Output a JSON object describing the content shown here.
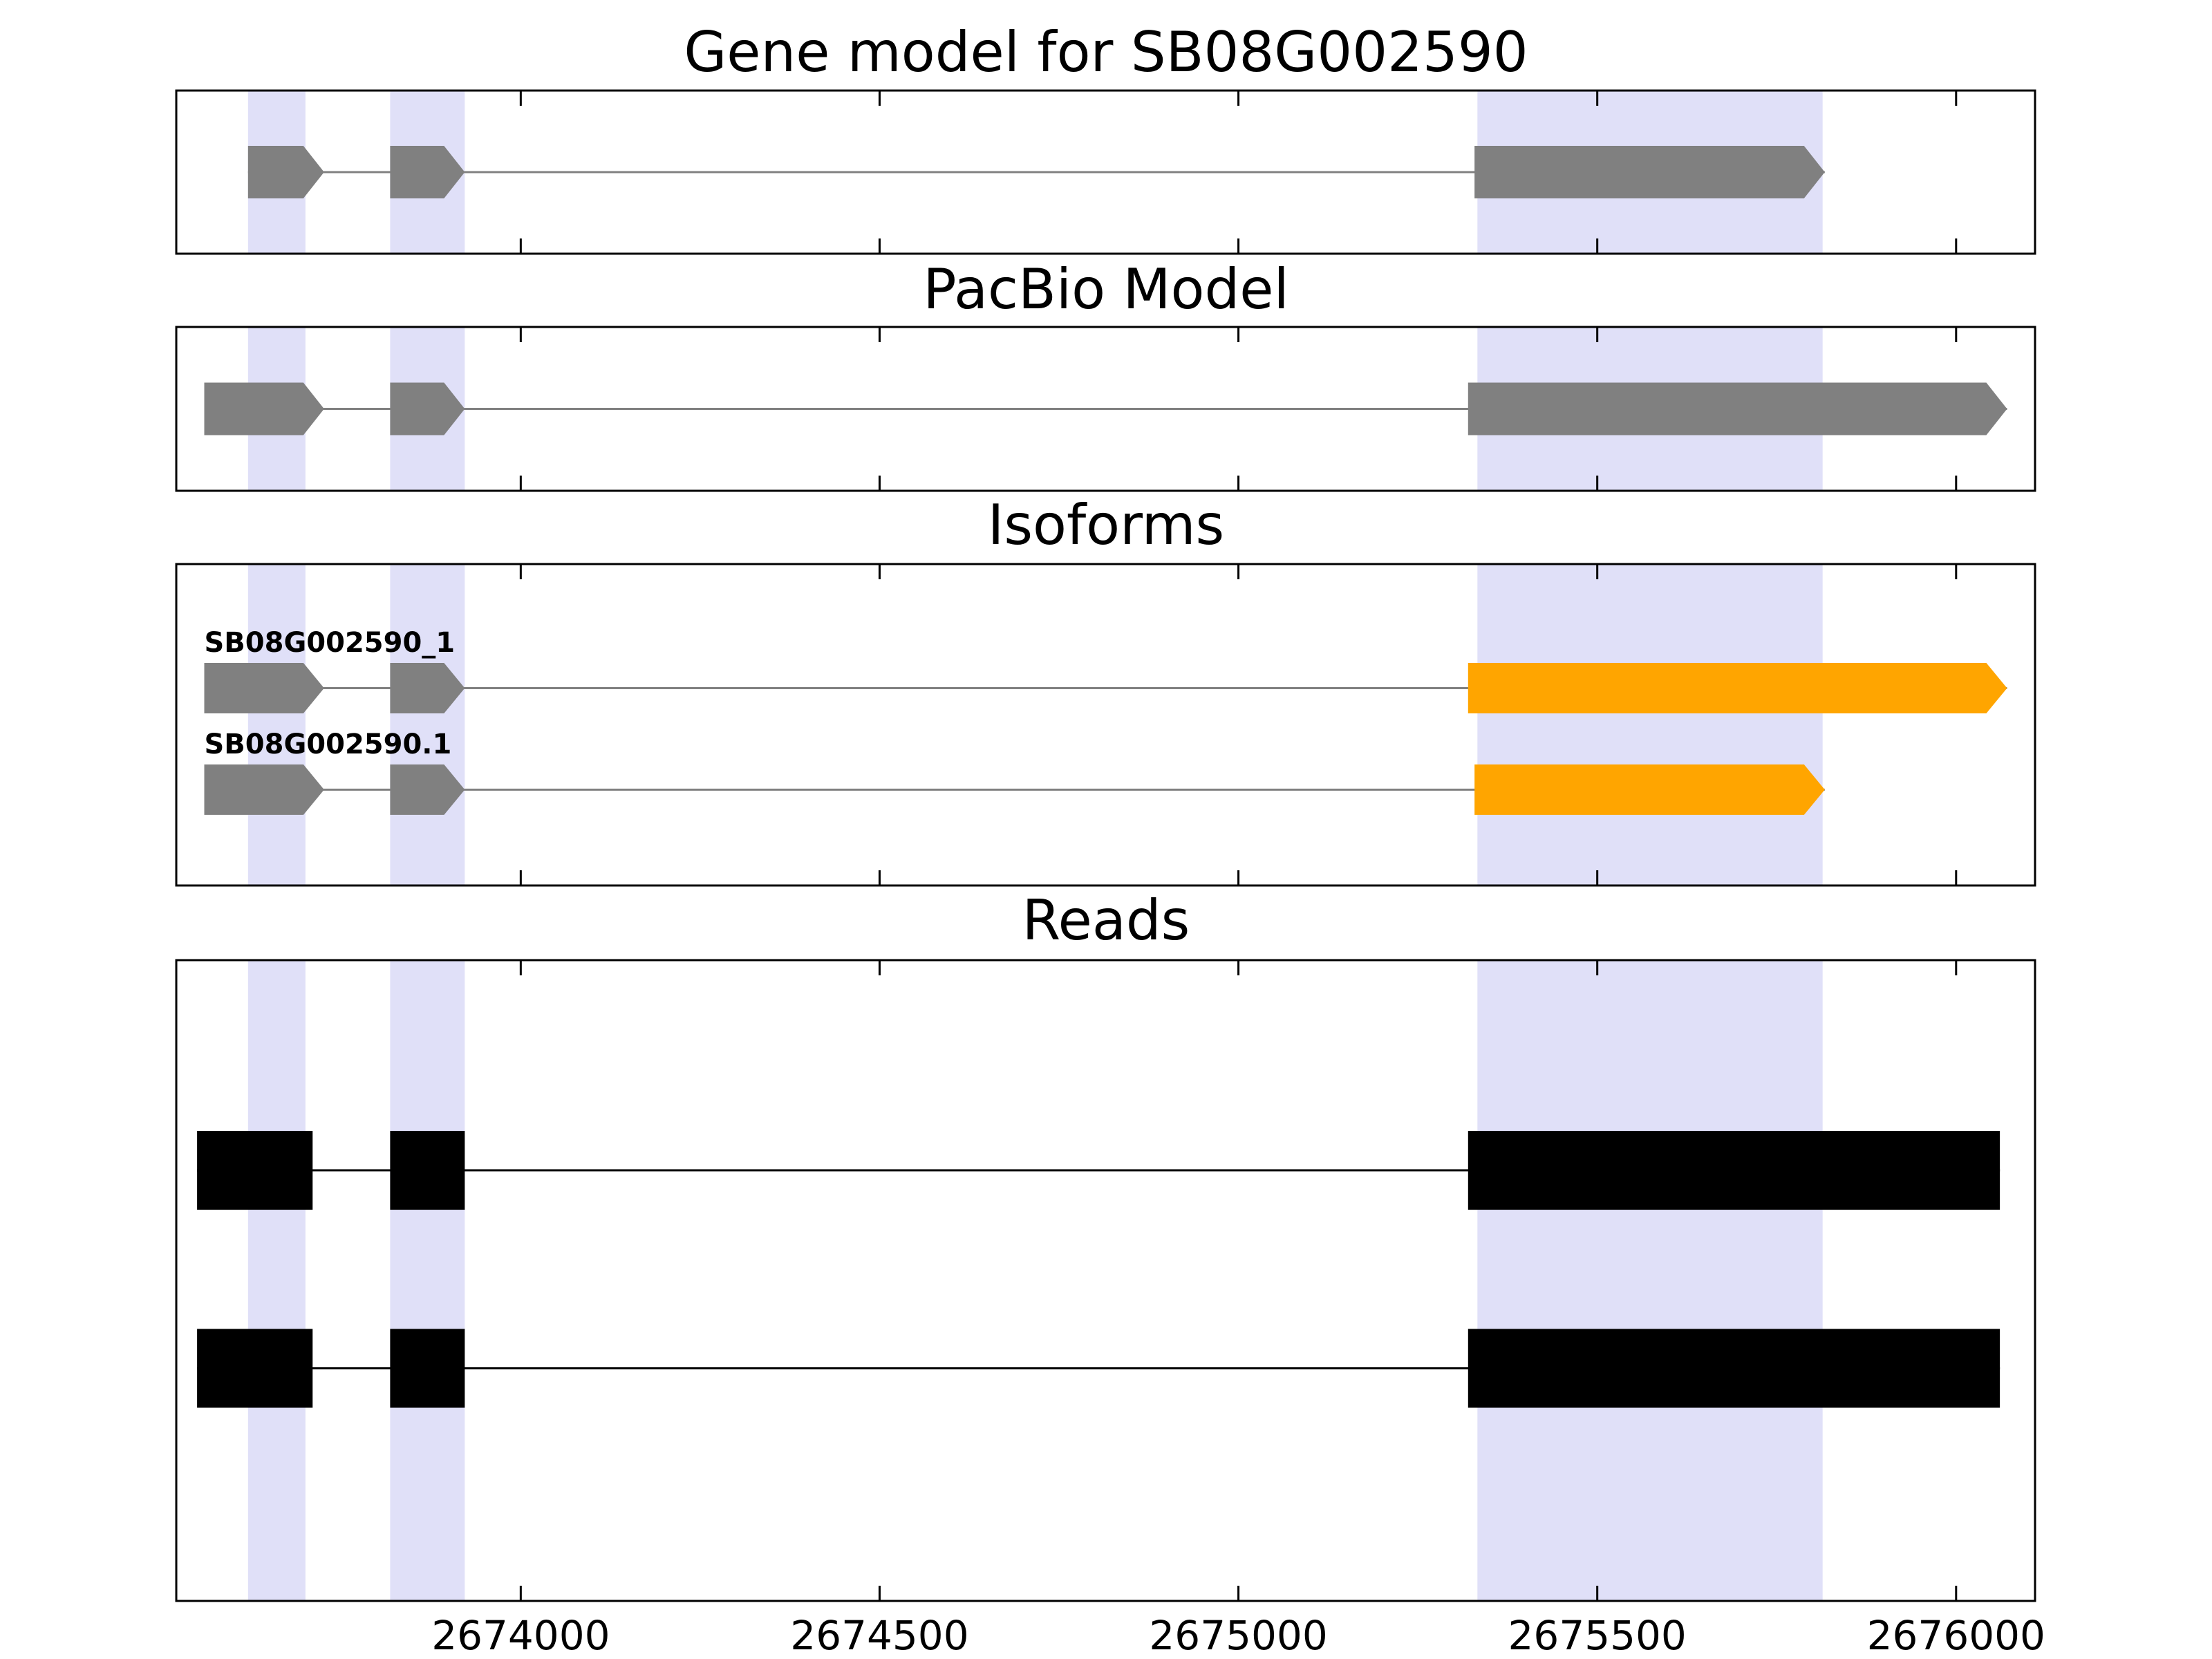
{
  "colors": {
    "gene_model": "#808080",
    "isoform_terminal_exon": "#FFA500",
    "read": "#000000",
    "region_highlight": "#E0E0F8",
    "axis": "#000000",
    "background": "#FFFFFF"
  },
  "chart_data": {
    "type": "gene-model-tracks",
    "title": "Gene model for SB08G002590",
    "xlim": [
      2673520,
      2676110
    ],
    "x_tick_values": [
      2674000,
      2674500,
      2675000,
      2675500,
      2676000
    ],
    "x_ticks": [
      "2674000",
      "2674500",
      "2675000",
      "2675500",
      "2676000"
    ],
    "highlights": [
      {
        "start": 2673620,
        "end": 2673700
      },
      {
        "start": 2673818,
        "end": 2673922
      },
      {
        "start": 2675333,
        "end": 2675814
      }
    ],
    "panels": [
      {
        "id": "gene-model",
        "title": "Gene model for SB08G002590",
        "rows": [
          {
            "label": "",
            "style": "arrow",
            "line_color": "#808080",
            "exons": [
              {
                "start": 2673620,
                "end": 2673726,
                "color": "#808080"
              },
              {
                "start": 2673818,
                "end": 2673922,
                "color": "#808080"
              },
              {
                "start": 2675329,
                "end": 2675817,
                "color": "#808080"
              }
            ]
          }
        ]
      },
      {
        "id": "pacbio",
        "title": "PacBio Model",
        "rows": [
          {
            "label": "",
            "style": "arrow",
            "line_color": "#808080",
            "exons": [
              {
                "start": 2673559,
                "end": 2673726,
                "color": "#808080"
              },
              {
                "start": 2673818,
                "end": 2673922,
                "color": "#808080"
              },
              {
                "start": 2675320,
                "end": 2676071,
                "color": "#808080"
              }
            ]
          }
        ]
      },
      {
        "id": "isoforms",
        "title": "Isoforms",
        "rows": [
          {
            "label": "SB08G002590_1",
            "style": "arrow",
            "line_color": "#808080",
            "exons": [
              {
                "start": 2673559,
                "end": 2673726,
                "color": "#808080"
              },
              {
                "start": 2673818,
                "end": 2673922,
                "color": "#808080"
              },
              {
                "start": 2675320,
                "end": 2676071,
                "color": "#FFA500"
              }
            ]
          },
          {
            "label": "SB08G002590.1",
            "style": "arrow",
            "line_color": "#808080",
            "exons": [
              {
                "start": 2673559,
                "end": 2673726,
                "color": "#808080"
              },
              {
                "start": 2673818,
                "end": 2673922,
                "color": "#808080"
              },
              {
                "start": 2675329,
                "end": 2675817,
                "color": "#FFA500"
              }
            ]
          }
        ]
      },
      {
        "id": "reads",
        "title": "Reads",
        "rows": [
          {
            "label": "",
            "style": "rect",
            "line_color": "#000000",
            "exons": [
              {
                "start": 2673549,
                "end": 2673710,
                "color": "#000000"
              },
              {
                "start": 2673818,
                "end": 2673922,
                "color": "#000000"
              },
              {
                "start": 2675320,
                "end": 2676061,
                "color": "#000000"
              }
            ]
          },
          {
            "label": "",
            "style": "rect",
            "line_color": "#000000",
            "exons": [
              {
                "start": 2673549,
                "end": 2673710,
                "color": "#000000"
              },
              {
                "start": 2673818,
                "end": 2673922,
                "color": "#000000"
              },
              {
                "start": 2675320,
                "end": 2676061,
                "color": "#000000"
              }
            ]
          }
        ]
      }
    ]
  }
}
